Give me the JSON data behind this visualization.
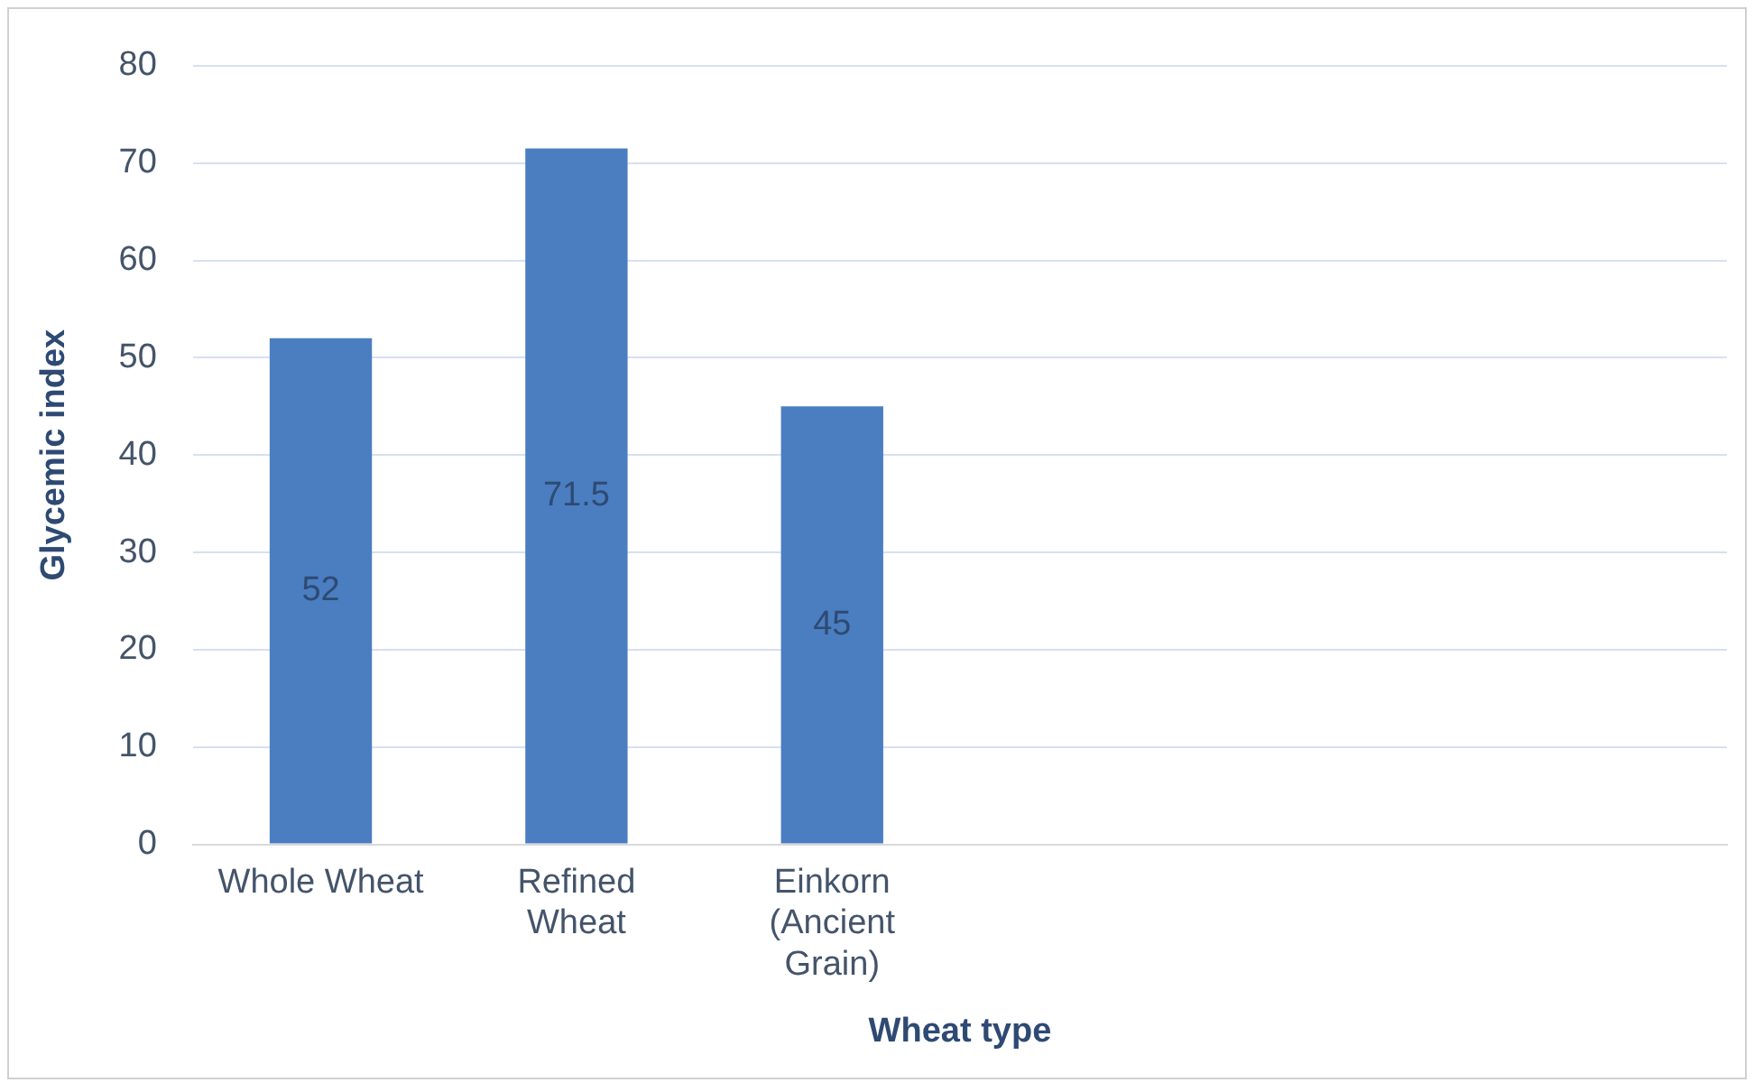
{
  "chart_data": {
    "type": "bar",
    "xlabel": "Wheat type",
    "ylabel": "Glycemic index",
    "categories": [
      "Whole Wheat",
      "Refined Wheat",
      "Einkorn (Ancient Grain)",
      null,
      null,
      null
    ],
    "values": [
      52,
      71.5,
      45,
      null,
      null,
      null
    ],
    "color": "#4a7ec0",
    "ylim": [
      0,
      80
    ],
    "yticks": [
      0,
      10,
      20,
      30,
      40,
      50,
      60,
      70,
      80
    ],
    "grid": "y",
    "legend": false,
    "data_labels": true
  }
}
